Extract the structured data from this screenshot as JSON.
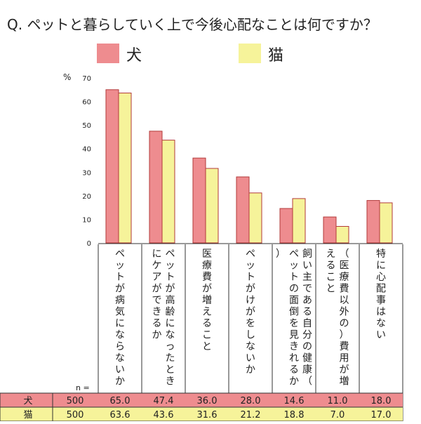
{
  "chart_data": {
    "type": "bar",
    "title": "Q. ペットと暮らしていく上で今後心配なことは何ですか？",
    "ylabel": "%",
    "ylim": [
      0,
      70
    ],
    "yticks": [
      "0",
      "10",
      "20",
      "30",
      "40",
      "50",
      "60",
      "70"
    ],
    "grid": false,
    "legend_position": "top",
    "categories": [
      "ペットが病気にならないか",
      "ペットが高齢になったときにケアができるか",
      "医療費が増えること",
      "ペットがけがをしないか",
      "飼い主である自分の健康（ペットの面倒を見きれるか）",
      "（医療費以外の）費用が増えること",
      "特に心配事はない"
    ],
    "series": [
      {
        "name": "犬",
        "color": "#ee8c8f",
        "n": "500",
        "values": [
          65.0,
          47.4,
          36.0,
          28.0,
          14.6,
          11.0,
          18.0
        ],
        "value_labels": [
          "65.0",
          "47.4",
          "36.0",
          "28.0",
          "14.6",
          "11.0",
          "18.0"
        ]
      },
      {
        "name": "猫",
        "color": "#f6f39a",
        "n": "500",
        "values": [
          63.6,
          43.6,
          31.6,
          21.2,
          18.8,
          7.0,
          17.0
        ],
        "value_labels": [
          "63.6",
          "43.6",
          "31.6",
          "21.2",
          "18.8",
          "7.0",
          "17.0"
        ]
      }
    ],
    "n_label": "n ="
  }
}
